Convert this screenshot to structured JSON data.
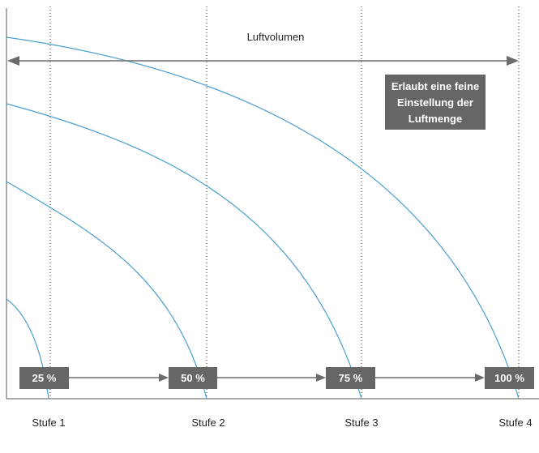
{
  "title": "Luftvolumen",
  "note": {
    "lines": [
      "Erlaubt eine feine",
      "Einstellung der",
      "Luftmenge"
    ]
  },
  "percent_labels": [
    "25 %",
    "50 %",
    "75 %",
    "100 %"
  ],
  "stage_labels": [
    "Stufe 1",
    "Stufe 2",
    "Stufe 3",
    "Stufe 4"
  ],
  "colors": {
    "curve": "#4a9fcf",
    "label_box": "#666666",
    "arrow": "#6b6b6b"
  }
}
